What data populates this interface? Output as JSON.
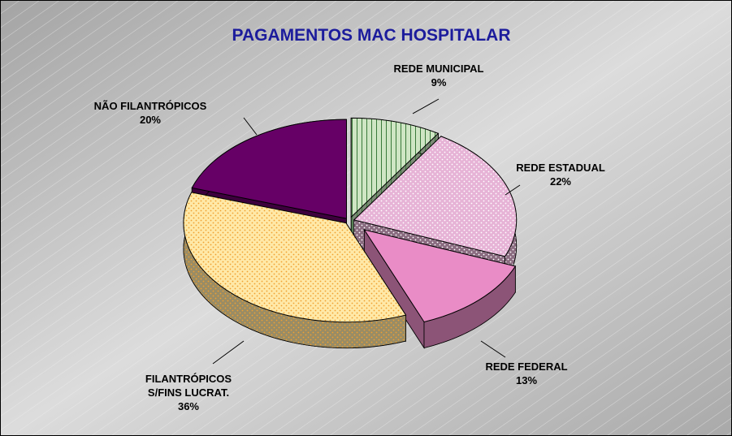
{
  "chart_data": {
    "type": "pie",
    "title": "PAGAMENTOS MAC HOSPITALAR",
    "categories": [
      "REDE MUNICIPAL",
      "REDE ESTADUAL",
      "REDE FEDERAL",
      "FILANTRÓPICOS\nS/FINS LUCRAT.",
      "NÃO FILANTRÓPICOS"
    ],
    "values": [
      9,
      22,
      13,
      36,
      20
    ],
    "value_labels": [
      "9%",
      "22%",
      "13%",
      "36%",
      "20%"
    ],
    "colors": [
      "#cfe6c4",
      "#e6b3d6",
      "#e98cc6",
      "#ffe9a8",
      "#660066"
    ]
  }
}
